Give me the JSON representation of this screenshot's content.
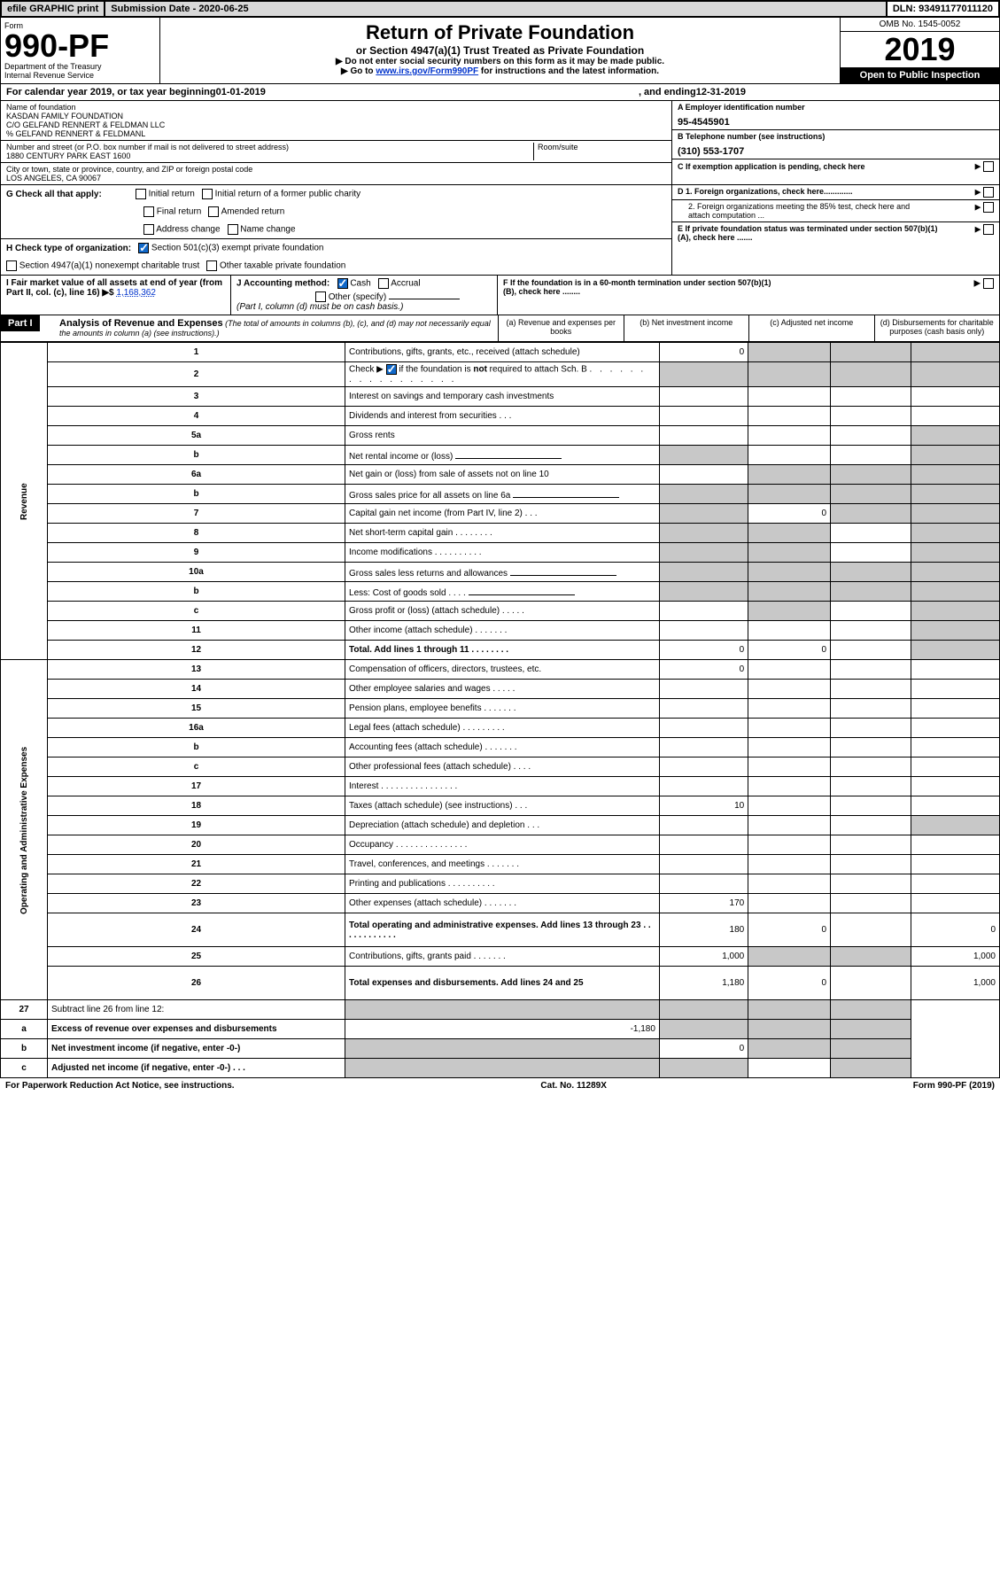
{
  "header": {
    "efile": "efile GRAPHIC print",
    "submission": "Submission Date - 2020-06-25",
    "dln": "DLN: 93491177011120"
  },
  "form": {
    "form_label": "Form",
    "number": "990-PF",
    "dept": "Department of the Treasury",
    "irs": "Internal Revenue Service",
    "title": "Return of Private Foundation",
    "subtitle": "or Section 4947(a)(1) Trust Treated as Private Foundation",
    "instr1": "▶ Do not enter social security numbers on this form as it may be made public.",
    "instr2_pre": "▶ Go to ",
    "instr2_link": "www.irs.gov/Form990PF",
    "instr2_post": " for instructions and the latest information.",
    "omb": "OMB No. 1545-0052",
    "year": "2019",
    "open": "Open to Public Inspection"
  },
  "calyear": {
    "pre": "For calendar year 2019, or tax year beginning ",
    "begin": "01-01-2019",
    "mid": " , and ending ",
    "end": "12-31-2019"
  },
  "filer": {
    "name_label": "Name of foundation",
    "name1": "KASDAN FAMILY FOUNDATION",
    "name2": "C/O GELFAND RENNERT & FELDMAN LLC",
    "name3": "% GELFAND RENNERT & FELDMANL",
    "addr_label": "Number and street (or P.O. box number if mail is not delivered to street address)",
    "addr": "1880 CENTURY PARK EAST 1600",
    "room_label": "Room/suite",
    "city_label": "City or town, state or province, country, and ZIP or foreign postal code",
    "city": "LOS ANGELES, CA  90067",
    "a_label": "A Employer identification number",
    "ein": "95-4545901",
    "b_label": "B Telephone number (see instructions)",
    "phone": "(310) 553-1707",
    "c_label": "C If exemption application is pending, check here",
    "d1": "D 1. Foreign organizations, check here.............",
    "d2": "2. Foreign organizations meeting the 85% test, check here and attach computation ...",
    "e": "E  If private foundation status was terminated under section 507(b)(1)(A), check here .......",
    "f": "F  If the foundation is in a 60-month termination under section 507(b)(1)(B), check here ........"
  },
  "g": {
    "label": "G Check all that apply:",
    "opts": [
      "Initial return",
      "Initial return of a former public charity",
      "Final return",
      "Amended return",
      "Address change",
      "Name change"
    ]
  },
  "h": {
    "label": "H Check type of organization:",
    "o1": "Section 501(c)(3) exempt private foundation",
    "o2": "Section 4947(a)(1) nonexempt charitable trust",
    "o3": "Other taxable private foundation"
  },
  "i": {
    "label": "I Fair market value of all assets at end of year (from Part II, col. (c), line 16) ▶$",
    "val": "1,168,362"
  },
  "j": {
    "label": "J Accounting method:",
    "cash": "Cash",
    "accrual": "Accrual",
    "other": "Other (specify)",
    "note": "(Part I, column (d) must be on cash basis.)"
  },
  "part1": {
    "label": "Part I",
    "title": "Analysis of Revenue and Expenses",
    "note": " (The total of amounts in columns (b), (c), and (d) may not necessarily equal the amounts in column (a) (see instructions).)",
    "cols": [
      "(a)   Revenue and expenses per books",
      "(b)  Net investment income",
      "(c)  Adjusted net income",
      "(d)  Disbursements for charitable purposes (cash basis only)"
    ]
  },
  "sides": {
    "revenue": "Revenue",
    "expenses": "Operating and Administrative Expenses"
  },
  "rows": [
    {
      "n": "1",
      "d": "Contributions, gifts, grants, etc., received (attach schedule)",
      "a": "0",
      "bS": true,
      "cS": true,
      "dS": true
    },
    {
      "n": "2",
      "d": "Check ▶ ☑ if the foundation is not required to attach Sch. B",
      "aS": true,
      "bS": true,
      "cS": true,
      "dS": true,
      "bold_not": true
    },
    {
      "n": "3",
      "d": "Interest on savings and temporary cash investments"
    },
    {
      "n": "4",
      "d": "Dividends and interest from securities   .   .   ."
    },
    {
      "n": "5a",
      "d": "Gross rents",
      "dS": true
    },
    {
      "n": "b",
      "d": "Net rental income or (loss)",
      "aS": true,
      "dS": true,
      "inline": true
    },
    {
      "n": "6a",
      "d": "Net gain or (loss) from sale of assets not on line 10",
      "bS": true,
      "cS": true,
      "dS": true
    },
    {
      "n": "b",
      "d": "Gross sales price for all assets on line 6a",
      "aS": true,
      "bS": true,
      "cS": true,
      "dS": true,
      "inline": true
    },
    {
      "n": "7",
      "d": "Capital gain net income (from Part IV, line 2)   .   .   .",
      "aS": true,
      "b": "0",
      "cS": true,
      "dS": true
    },
    {
      "n": "8",
      "d": "Net short-term capital gain   .   .   .   .   .   .   .   .",
      "aS": true,
      "bS": true,
      "dS": true
    },
    {
      "n": "9",
      "d": "Income modifications  .   .   .   .   .   .   .   .   .   .",
      "aS": true,
      "bS": true,
      "dS": true
    },
    {
      "n": "10a",
      "d": "Gross sales less returns and allowances",
      "aS": true,
      "bS": true,
      "cS": true,
      "dS": true,
      "inline": true
    },
    {
      "n": "b",
      "d": "Less: Cost of goods sold    .   .   .   .",
      "aS": true,
      "bS": true,
      "cS": true,
      "dS": true,
      "inline": true
    },
    {
      "n": "c",
      "d": "Gross profit or (loss) (attach schedule)   .   .   .   .   .",
      "bS": true,
      "dS": true
    },
    {
      "n": "11",
      "d": "Other income (attach schedule)    .   .   .   .   .   .   .",
      "dS": true
    },
    {
      "n": "12",
      "d": "Total. Add lines 1 through 11    .   .   .   .   .   .   .   .",
      "a": "0",
      "b": "0",
      "dS": true,
      "bold": true
    }
  ],
  "rows2": [
    {
      "n": "13",
      "d": "Compensation of officers, directors, trustees, etc.",
      "a": "0"
    },
    {
      "n": "14",
      "d": "Other employee salaries and wages    .   .   .   .   ."
    },
    {
      "n": "15",
      "d": "Pension plans, employee benefits   .   .   .   .   .   .   ."
    },
    {
      "n": "16a",
      "d": "Legal fees (attach schedule)  .   .   .   .   .   .   .   .   ."
    },
    {
      "n": "b",
      "d": "Accounting fees (attach schedule)   .   .   .   .   .   .   ."
    },
    {
      "n": "c",
      "d": "Other professional fees (attach schedule)    .   .   .   ."
    },
    {
      "n": "17",
      "d": "Interest   .   .   .   .   .   .   .   .   .   .   .   .   .   .   .   ."
    },
    {
      "n": "18",
      "d": "Taxes (attach schedule) (see instructions)    .   .   .",
      "a": "10"
    },
    {
      "n": "19",
      "d": "Depreciation (attach schedule) and depletion    .   .   .",
      "dS": true
    },
    {
      "n": "20",
      "d": "Occupancy  .   .   .   .   .   .   .   .   .   .   .   .   .   .   ."
    },
    {
      "n": "21",
      "d": "Travel, conferences, and meetings  .   .   .   .   .   .   ."
    },
    {
      "n": "22",
      "d": "Printing and publications  .   .   .   .   .   .   .   .   .   ."
    },
    {
      "n": "23",
      "d": "Other expenses (attach schedule)  .   .   .   .   .   .   .",
      "a": "170"
    },
    {
      "n": "24",
      "d": "Total operating and administrative expenses. Add lines 13 through 23   .   .   .   .   .   .   .   .   .   .   .   .",
      "a": "180",
      "b": "0",
      "d4": "0",
      "bold": true,
      "tall": true
    },
    {
      "n": "25",
      "d": "Contributions, gifts, grants paid    .   .   .   .   .   .   .",
      "a": "1,000",
      "bS": true,
      "cS": true,
      "d4": "1,000"
    },
    {
      "n": "26",
      "d": "Total expenses and disbursements. Add lines 24 and 25",
      "a": "1,180",
      "b": "0",
      "d4": "1,000",
      "bold": true,
      "tall": true
    }
  ],
  "rows3": [
    {
      "n": "27",
      "d": "Subtract line 26 from line 12:",
      "aS": true,
      "bS": true,
      "cS": true,
      "dS": true
    },
    {
      "n": "a",
      "d": "Excess of revenue over expenses and disbursements",
      "a": "-1,180",
      "bS": true,
      "cS": true,
      "dS": true,
      "bold": true
    },
    {
      "n": "b",
      "d": "Net investment income (if negative, enter -0-)",
      "aS": true,
      "b": "0",
      "cS": true,
      "dS": true,
      "bold": true
    },
    {
      "n": "c",
      "d": "Adjusted net income (if negative, enter -0-)  .   .   .",
      "aS": true,
      "bS": true,
      "dS": true,
      "bold": true
    }
  ],
  "footer": {
    "left": "For Paperwork Reduction Act Notice, see instructions.",
    "mid": "Cat. No. 11289X",
    "right": "Form 990-PF (2019)"
  }
}
